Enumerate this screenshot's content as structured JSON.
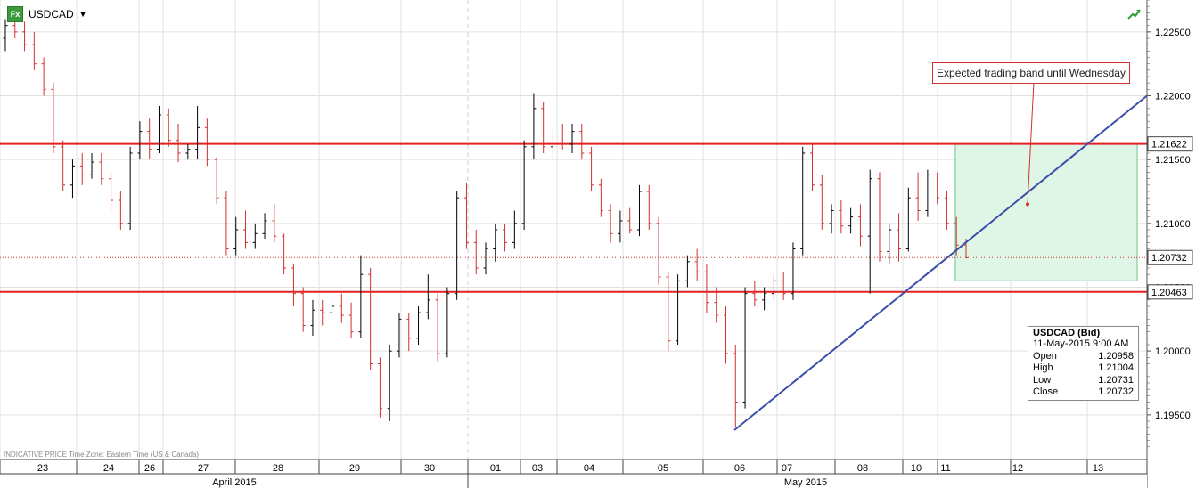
{
  "header": {
    "symbol": "USDCAD",
    "fx_badge": "Fx"
  },
  "footer_note": "INDICATIVE PRICE   Time Zone: Eastern Time (US & Canada)",
  "annotation": "Expected trading band until Wednesday",
  "ohlc_box": {
    "title": "USDCAD (Bid)",
    "date": "11-May-2015 9:00 AM",
    "rows": [
      {
        "label": "Open",
        "value": "1.20958"
      },
      {
        "label": "High",
        "value": "1.21004"
      },
      {
        "label": "Low",
        "value": "1.20731"
      },
      {
        "label": "Close",
        "value": "1.20732"
      }
    ]
  },
  "price_tags": {
    "upper": "1.21622",
    "current": "1.20732",
    "lower": "1.20463"
  },
  "colors": {
    "up": "#000000",
    "down": "#d0312d",
    "level_line": "#e52020",
    "trend_line": "#3b4fa8",
    "band_fill": "#dff5e6",
    "band_border": "#6cc68a",
    "grid": "#e1e1e1"
  },
  "chart_data": {
    "type": "candlestick",
    "y_ticks": [
      "1.22500",
      "1.22000",
      "1.21500",
      "1.21000",
      "1.20500",
      "1.20000",
      "1.19500"
    ],
    "ylim": [
      1.1915,
      1.2275
    ],
    "x_day_labels": [
      "23",
      "24",
      "26",
      "27",
      "28",
      "29",
      "30",
      "01",
      "03",
      "04",
      "05",
      "06",
      "07",
      "08",
      "10",
      "11",
      "12",
      "13"
    ],
    "x_month_labels": [
      "April 2015",
      "May 2015"
    ],
    "horizontal_levels": [
      1.21622,
      1.20463
    ],
    "current_price": 1.20732,
    "trend_line": {
      "from": {
        "date": "06 May 2015",
        "price": 1.1938
      },
      "to": {
        "date": "13 May 2015",
        "price": 1.22
      }
    },
    "band": {
      "y_top": 1.21622,
      "y_bottom": 1.2055,
      "from": "11 May 2015",
      "to": "13 May 2015"
    },
    "annotation_target": {
      "date": "12 May 2015",
      "price": 1.2115
    },
    "candles": [
      [
        1.2245,
        1.226,
        1.2235,
        1.2255
      ],
      [
        1.2255,
        1.227,
        1.2245,
        1.225
      ],
      [
        1.225,
        1.2258,
        1.2235,
        1.224
      ],
      [
        1.224,
        1.225,
        1.222,
        1.2225
      ],
      [
        1.2225,
        1.223,
        1.22,
        1.2205
      ],
      [
        1.2205,
        1.221,
        1.2155,
        1.216
      ],
      [
        1.216,
        1.2165,
        1.2125,
        1.213
      ],
      [
        1.213,
        1.215,
        1.212,
        1.2145
      ],
      [
        1.2145,
        1.2155,
        1.213,
        1.2138
      ],
      [
        1.2138,
        1.2155,
        1.2135,
        1.2148
      ],
      [
        1.2148,
        1.2155,
        1.213,
        1.2135
      ],
      [
        1.2135,
        1.214,
        1.211,
        1.2118
      ],
      [
        1.2118,
        1.2125,
        1.2095,
        1.21
      ],
      [
        1.21,
        1.216,
        1.2095,
        1.2155
      ],
      [
        1.2155,
        1.218,
        1.215,
        1.2172
      ],
      [
        1.2172,
        1.2182,
        1.215,
        1.2158
      ],
      [
        1.2158,
        1.2192,
        1.2155,
        1.2185
      ],
      [
        1.2185,
        1.219,
        1.216,
        1.2165
      ],
      [
        1.2165,
        1.2178,
        1.2148,
        1.2155
      ],
      [
        1.2155,
        1.2162,
        1.215,
        1.2158
      ],
      [
        1.2158,
        1.2192,
        1.215,
        1.2175
      ],
      [
        1.2175,
        1.2182,
        1.2145,
        1.215
      ],
      [
        1.215,
        1.2152,
        1.2115,
        1.212
      ],
      [
        1.212,
        1.2125,
        1.2075,
        1.208
      ],
      [
        1.208,
        1.2105,
        1.2075,
        1.2095
      ],
      [
        1.2095,
        1.211,
        1.208,
        1.2085
      ],
      [
        1.2085,
        1.21,
        1.208,
        1.2092
      ],
      [
        1.2092,
        1.2108,
        1.2088,
        1.2102
      ],
      [
        1.2102,
        1.2115,
        1.2085,
        1.209
      ],
      [
        1.209,
        1.2092,
        1.206,
        1.2065
      ],
      [
        1.2065,
        1.2068,
        1.2035,
        1.2045
      ],
      [
        1.2045,
        1.205,
        1.2015,
        1.202
      ],
      [
        1.202,
        1.204,
        1.2012,
        1.2032
      ],
      [
        1.2032,
        1.204,
        1.202,
        1.203
      ],
      [
        1.203,
        1.2042,
        1.2025,
        1.2035
      ],
      [
        1.2035,
        1.2045,
        1.2022,
        1.2028
      ],
      [
        1.2028,
        1.2038,
        1.201,
        1.2015
      ],
      [
        1.2015,
        1.2075,
        1.201,
        1.206
      ],
      [
        1.206,
        1.2065,
        1.1985,
        1.199
      ],
      [
        1.199,
        1.1995,
        1.1948,
        1.1955
      ],
      [
        1.1955,
        1.2005,
        1.1945,
        1.2
      ],
      [
        1.2,
        1.203,
        1.1995,
        1.2025
      ],
      [
        1.2025,
        1.203,
        1.2,
        1.201
      ],
      [
        1.201,
        1.2035,
        1.2005,
        1.203
      ],
      [
        1.203,
        1.206,
        1.2025,
        1.204
      ],
      [
        1.204,
        1.2045,
        1.1992,
        1.1998
      ],
      [
        1.1998,
        1.205,
        1.1995,
        1.2045
      ],
      [
        1.2045,
        1.2125,
        1.204,
        1.212
      ],
      [
        1.212,
        1.2132,
        1.208,
        1.2085
      ],
      [
        1.2085,
        1.2095,
        1.206,
        1.2065
      ],
      [
        1.2065,
        1.2085,
        1.206,
        1.208
      ],
      [
        1.208,
        1.21,
        1.207,
        1.2095
      ],
      [
        1.2095,
        1.21,
        1.2078,
        1.2085
      ],
      [
        1.2085,
        1.211,
        1.208,
        1.21
      ],
      [
        1.21,
        1.2165,
        1.2095,
        1.216
      ],
      [
        1.216,
        1.2202,
        1.215,
        1.219
      ],
      [
        1.219,
        1.2195,
        1.2155,
        1.216
      ],
      [
        1.216,
        1.2175,
        1.215,
        1.217
      ],
      [
        1.217,
        1.2178,
        1.2158,
        1.2162
      ],
      [
        1.2162,
        1.2178,
        1.2155,
        1.2172
      ],
      [
        1.2172,
        1.2178,
        1.215,
        1.2155
      ],
      [
        1.2155,
        1.216,
        1.2125,
        1.213
      ],
      [
        1.213,
        1.2135,
        1.2105,
        1.211
      ],
      [
        1.211,
        1.2115,
        1.2085,
        1.2092
      ],
      [
        1.2092,
        1.211,
        1.2085,
        1.2102
      ],
      [
        1.2102,
        1.2112,
        1.2092,
        1.2095
      ],
      [
        1.2095,
        1.213,
        1.209,
        1.2125
      ],
      [
        1.2125,
        1.213,
        1.2095,
        1.21
      ],
      [
        1.21,
        1.2105,
        1.2052,
        1.2058
      ],
      [
        1.2058,
        1.2062,
        1.2,
        1.2008
      ],
      [
        1.2008,
        1.206,
        1.2005,
        1.2055
      ],
      [
        1.2055,
        1.2075,
        1.205,
        1.207
      ],
      [
        1.207,
        1.208,
        1.2055,
        1.2062
      ],
      [
        1.2062,
        1.2068,
        1.203,
        1.2038
      ],
      [
        1.2038,
        1.205,
        1.2022,
        1.2028
      ],
      [
        1.2028,
        1.2035,
        1.199,
        1.1998
      ],
      [
        1.1998,
        1.2005,
        1.194,
        1.196
      ],
      [
        1.196,
        1.205,
        1.1955,
        1.2045
      ],
      [
        1.2045,
        1.2055,
        1.2035,
        1.204
      ],
      [
        1.204,
        1.205,
        1.2032,
        1.2045
      ],
      [
        1.2045,
        1.206,
        1.204,
        1.2055
      ],
      [
        1.2055,
        1.2062,
        1.204,
        1.2045
      ],
      [
        1.2045,
        1.2085,
        1.204,
        1.208
      ],
      [
        1.208,
        1.216,
        1.2075,
        1.2155
      ],
      [
        1.2155,
        1.2162,
        1.2125,
        1.213
      ],
      [
        1.213,
        1.2138,
        1.2095,
        1.21
      ],
      [
        1.21,
        1.2115,
        1.2092,
        1.211
      ],
      [
        1.211,
        1.2118,
        1.2092,
        1.2098
      ],
      [
        1.2098,
        1.2112,
        1.2092,
        1.2105
      ],
      [
        1.2105,
        1.2115,
        1.2082,
        1.209
      ],
      [
        1.209,
        1.2142,
        1.2045,
        1.2135
      ],
      [
        1.2135,
        1.214,
        1.207,
        1.2078
      ],
      [
        1.2078,
        1.21,
        1.2068,
        1.2095
      ],
      [
        1.2095,
        1.2108,
        1.207,
        1.208
      ],
      [
        1.208,
        1.2128,
        1.2078,
        1.212
      ],
      [
        1.212,
        1.214,
        1.2102,
        1.211
      ],
      [
        1.211,
        1.2142,
        1.2105,
        1.2138
      ],
      [
        1.2138,
        1.214,
        1.2115,
        1.212
      ],
      [
        1.212,
        1.2125,
        1.2095,
        1.21
      ],
      [
        1.21,
        1.2105,
        1.2075,
        1.2083
      ],
      [
        1.2083,
        1.2088,
        1.2073,
        1.2073
      ]
    ]
  }
}
